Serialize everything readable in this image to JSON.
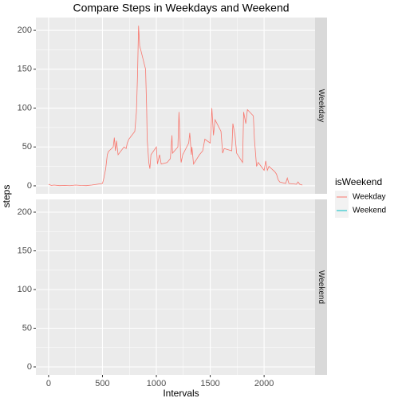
{
  "chart_data": {
    "type": "line",
    "title": "Compare Steps in Weekdays and Weekend",
    "x_label": "Intervals",
    "y_label": "steps",
    "legend_title": "isWeekend",
    "facets": [
      "Weekday",
      "Weekend"
    ],
    "x": [
      0,
      25,
      50,
      100,
      150,
      200,
      250,
      300,
      350,
      400,
      450,
      500,
      510,
      530,
      545,
      555,
      600,
      610,
      620,
      630,
      645,
      700,
      720,
      730,
      745,
      800,
      815,
      825,
      835,
      845,
      855,
      900,
      910,
      915,
      930,
      940,
      950,
      1000,
      1010,
      1030,
      1045,
      1100,
      1130,
      1145,
      1150,
      1200,
      1210,
      1225,
      1230,
      1245,
      1300,
      1310,
      1325,
      1330,
      1345,
      1400,
      1430,
      1450,
      1500,
      1515,
      1530,
      1545,
      1600,
      1615,
      1630,
      1700,
      1710,
      1730,
      1745,
      1800,
      1810,
      1830,
      1845,
      1900,
      1910,
      1930,
      1945,
      2000,
      2015,
      2030,
      2045,
      2100,
      2115,
      2130,
      2145,
      2200,
      2215,
      2230,
      2300,
      2315,
      2330,
      2355
    ],
    "series": [
      {
        "name": "Weekday",
        "color": "#F8766D",
        "values": [
          2,
          0.5,
          1,
          0.3,
          0.5,
          0.2,
          1,
          0.5,
          0.3,
          1,
          2,
          3,
          8,
          22,
          40,
          44,
          50,
          62,
          45,
          58,
          40,
          50,
          48,
          55,
          60,
          70,
          95,
          140,
          206,
          180,
          175,
          150,
          100,
          60,
          30,
          22,
          40,
          50,
          28,
          40,
          28,
          30,
          35,
          65,
          42,
          50,
          95,
          40,
          30,
          40,
          55,
          68,
          40,
          50,
          28,
          40,
          45,
          60,
          55,
          100,
          65,
          85,
          70,
          42,
          48,
          45,
          80,
          65,
          42,
          30,
          95,
          80,
          98,
          90,
          60,
          25,
          30,
          20,
          32,
          20,
          25,
          18,
          15,
          8,
          5,
          3,
          10,
          3,
          2,
          5,
          2,
          1
        ]
      },
      {
        "name": "Weekend",
        "color": "#00BFC4",
        "values": [
          null,
          null,
          null,
          null,
          null,
          null,
          null,
          null,
          null,
          null,
          null,
          null,
          null,
          null,
          null,
          null,
          null,
          null,
          null,
          null,
          null,
          null,
          null,
          null,
          null,
          null,
          null,
          null,
          null,
          null,
          null,
          null,
          null,
          null,
          null,
          null,
          null,
          null,
          null,
          null,
          null,
          null,
          null,
          null,
          null,
          null,
          null,
          null,
          null,
          null,
          null,
          null,
          null,
          null,
          null,
          null,
          null,
          null,
          null,
          null,
          null,
          null,
          null,
          null,
          null,
          null,
          null,
          null,
          null,
          null,
          null,
          null,
          null,
          null,
          null,
          null,
          null,
          null,
          null,
          null,
          null,
          null,
          null,
          null,
          null,
          null,
          null,
          null,
          null,
          null,
          null,
          null
        ]
      }
    ],
    "xlim": [
      -117.75,
      2472.75
    ],
    "xticks": [
      0,
      500,
      1000,
      1500,
      2000
    ],
    "ylim": [
      -10.3,
      216.5
    ],
    "yticks": [
      0,
      50,
      100,
      150,
      200
    ],
    "grid": true
  }
}
